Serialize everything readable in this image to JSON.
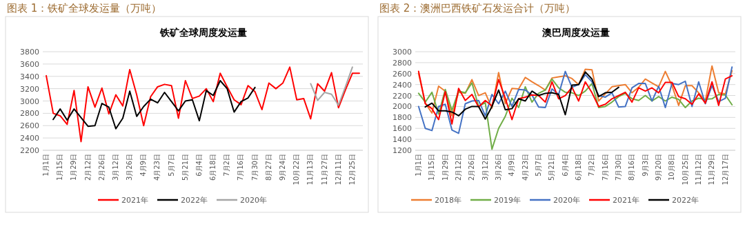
{
  "chart_data": [
    {
      "type": "line",
      "title": "图表 1：铁矿全球发运量（万吨）",
      "subtitle": "铁矿全球周度发运量",
      "categories": [
        "1月1日",
        null,
        "1月15日",
        null,
        "1月29日",
        null,
        "2月12日",
        null,
        "2月26日",
        null,
        "3月12日",
        null,
        "3月26日",
        null,
        "4月9日",
        null,
        "4月23日",
        null,
        "5月7日",
        null,
        "5月21日",
        null,
        "6月4日",
        null,
        "6月18日",
        null,
        "7月2日",
        null,
        "7月16日",
        null,
        "7月30日",
        null,
        "8月27日",
        null,
        "9月24日",
        null,
        "10月22日",
        null,
        "11月13日",
        null,
        "11月27日",
        null,
        "12月11日",
        null,
        "12月25日",
        null
      ],
      "series": [
        {
          "name": "2021年",
          "color": "#ff0000",
          "values": [
            3410,
            2800,
            2760,
            2620,
            3170,
            2340,
            3230,
            2900,
            3210,
            2790,
            3100,
            2920,
            3510,
            3100,
            2600,
            3070,
            3230,
            3270,
            3250,
            2720,
            3330,
            3040,
            3080,
            3200,
            2990,
            3450,
            3230,
            3020,
            2940,
            3250,
            3150,
            2860,
            3290,
            3200,
            3290,
            3550,
            3020,
            3040,
            2710,
            3280,
            3160,
            3460,
            2890,
            3180,
            3450,
            3450
          ]
        },
        {
          "name": "2022年",
          "color": "#000000",
          "values": [
            null,
            2700,
            2870,
            2690,
            2870,
            2730,
            2590,
            2600,
            2960,
            2900,
            2550,
            2720,
            3160,
            2750,
            2910,
            3030,
            2970,
            3140,
            2990,
            2840,
            3000,
            3020,
            2680,
            3170,
            3090,
            3330,
            3200,
            2820,
            2990,
            3050,
            3220,
            null,
            null,
            null,
            null,
            null,
            null,
            null,
            null,
            null,
            null,
            null,
            null,
            null,
            null,
            null
          ]
        },
        {
          "name": "2020年",
          "color": "#a5a5a5",
          "values": [
            null,
            null,
            null,
            null,
            null,
            null,
            null,
            null,
            null,
            null,
            null,
            null,
            null,
            null,
            null,
            null,
            null,
            null,
            null,
            null,
            null,
            null,
            null,
            null,
            null,
            null,
            null,
            null,
            null,
            null,
            null,
            null,
            null,
            null,
            null,
            null,
            null,
            null,
            3280,
            3010,
            3140,
            3110,
            2930,
            3230,
            3550,
            null
          ]
        }
      ],
      "ylim": [
        2200,
        3800
      ],
      "yticks": [
        2200,
        2400,
        2600,
        2800,
        3000,
        3200,
        3400,
        3600,
        3800
      ],
      "grid": "y",
      "legend": "bottom"
    },
    {
      "type": "line",
      "title": "图表 2：澳洲巴西铁矿石发运合计（万吨）",
      "subtitle": "澳巴周度发运量",
      "categories": [
        "1月1日",
        null,
        "1月15日",
        null,
        "1月29日",
        null,
        "2月12日",
        null,
        "2月26日",
        null,
        "3月12日",
        null,
        "3月26日",
        null,
        "4月9日",
        null,
        "4月23日",
        null,
        "5月7日",
        null,
        "5月21日",
        null,
        "6月4日",
        null,
        "6月18日",
        null,
        "7月2日",
        null,
        "7月16日",
        null,
        "7月30日",
        null,
        "8月16日",
        null,
        "9月3日",
        null,
        "9月20日",
        null,
        "10月8日",
        null,
        "10月25日",
        null,
        "11月12日",
        null,
        "11月29日",
        null,
        "12月17日",
        null
      ],
      "series": [
        {
          "name": "2018年",
          "color": "#ed7d31",
          "values": [
            2600,
            2060,
            1880,
            2370,
            2280,
            1830,
            2260,
            2240,
            2490,
            2200,
            2250,
            1970,
            2620,
            2050,
            2330,
            2320,
            2530,
            2450,
            2380,
            2300,
            2520,
            2540,
            2560,
            2510,
            2400,
            2680,
            2670,
            2100,
            2230,
            2360,
            2380,
            2400,
            2250,
            2350,
            2500,
            2430,
            2360,
            2640,
            2380,
            2020,
            2380,
            2380,
            2250,
            2100,
            2740,
            2250,
            2230,
            2650
          ]
        },
        {
          "name": "2019年",
          "color": "#70ad47",
          "values": [
            2240,
            2080,
            2260,
            1860,
            2310,
            1930,
            2280,
            2250,
            2430,
            2000,
            2070,
            1220,
            1600,
            1820,
            2150,
            1980,
            2360,
            2080,
            2240,
            2300,
            2500,
            2340,
            2260,
            2250,
            2200,
            2280,
            2420,
            1980,
            2000,
            2080,
            2180,
            2240,
            2140,
            2110,
            2200,
            2100,
            2180,
            2100,
            2170,
            2130,
            1980,
            2100,
            2150,
            2130,
            2140,
            2220,
            2210,
            2030
          ]
        },
        {
          "name": "2020年",
          "color": "#4472c4",
          "values": [
            2000,
            1600,
            1560,
            2000,
            2040,
            1570,
            1510,
            2050,
            2100,
            2110,
            1830,
            2220,
            2050,
            2280,
            2000,
            2310,
            2300,
            2210,
            1990,
            1980,
            2320,
            2220,
            2640,
            2350,
            2400,
            2580,
            2450,
            2200,
            2170,
            2250,
            1990,
            2000,
            2340,
            2420,
            2420,
            2100,
            2370,
            1980,
            2420,
            2400,
            2460,
            2000,
            2450,
            2050,
            2380,
            2090,
            2150,
            2720
          ]
        },
        {
          "name": "2021年",
          "color": "#ff0000",
          "values": [
            2640,
            2050,
            1960,
            1760,
            2270,
            1680,
            2330,
            2110,
            2220,
            1990,
            2110,
            2010,
            2490,
            2150,
            1760,
            2140,
            2170,
            2210,
            2200,
            2080,
            2450,
            2140,
            2200,
            2350,
            2100,
            2450,
            2250,
            2000,
            2040,
            2140,
            2200,
            2260,
            2080,
            2340,
            2280,
            2340,
            2250,
            2440,
            2440,
            2180,
            2140,
            2040,
            2230,
            2060,
            2450,
            2020,
            2500,
            2560
          ]
        },
        {
          "name": "2022年",
          "color": "#000000",
          "values": [
            null,
            1990,
            2060,
            1920,
            1920,
            1900,
            1830,
            1950,
            2000,
            2000,
            1770,
            2000,
            2300,
            1940,
            1960,
            2140,
            2100,
            2280,
            2200,
            2240,
            2250,
            2220,
            1850,
            2390,
            2400,
            2630,
            2500,
            2180,
            2250,
            2260,
            2350,
            null,
            null,
            null,
            null,
            null,
            null,
            null,
            null,
            null,
            null,
            null,
            null,
            null,
            null,
            null,
            null,
            null
          ]
        }
      ],
      "ylim": [
        1200,
        3000
      ],
      "yticks": [
        1200,
        1400,
        1600,
        1800,
        2000,
        2200,
        2400,
        2600,
        2800,
        3000
      ],
      "grid": "y",
      "legend": "bottom"
    }
  ]
}
